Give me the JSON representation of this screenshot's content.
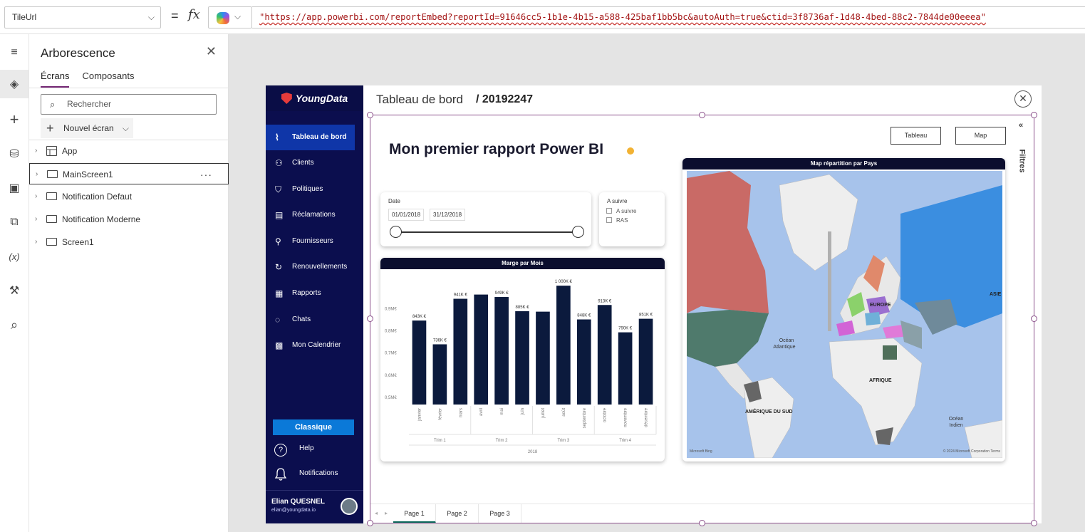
{
  "formula_bar": {
    "property": "TileUrl",
    "equals": "=",
    "fx": "fx",
    "chevron": "⌵",
    "expression": "\"https://app.powerbi.com/reportEmbed?reportId=91646cc5-1b1e-4b15-a588-425baf1bb5bc&autoAuth=true&ctid=3f8736af-1d48-4bed-88c2-7844de00eeea\""
  },
  "rail": {
    "icons": [
      "menu-icon",
      "layers-icon",
      "plus-icon",
      "database-icon",
      "media-icon",
      "power-automate-icon",
      "variables-icon",
      "tools-icon",
      "search-icon"
    ],
    "glyphs": [
      "≡",
      "◈",
      "+",
      "⛁",
      "▣",
      "⧉",
      "(x)",
      "⚒",
      "⌕"
    ]
  },
  "tree": {
    "title": "Arborescence",
    "close": "✕",
    "tabs": [
      "Écrans",
      "Composants"
    ],
    "search_placeholder": "Rechercher",
    "search_icon": "⌕",
    "new_screen": "Nouvel écran",
    "plus": "+",
    "chevron": "⌵",
    "arrow": "›",
    "more": "···",
    "items": [
      "App",
      "MainScreen1",
      "Notification Defaut",
      "Notification Moderne",
      "Screen1"
    ]
  },
  "app": {
    "brand": "YoungData",
    "header_title": "Tableau de bord",
    "header_id": "/ 20192247",
    "close": "✕",
    "nav": [
      {
        "label": "Tableau de bord",
        "icon": "chart-icon",
        "glyph": "⌇"
      },
      {
        "label": "Clients",
        "icon": "users-icon",
        "glyph": "⚇"
      },
      {
        "label": "Politiques",
        "icon": "shield-icon",
        "glyph": "⛉"
      },
      {
        "label": "Réclamations",
        "icon": "document-icon",
        "glyph": "▤"
      },
      {
        "label": "Fournisseurs",
        "icon": "supplier-icon",
        "glyph": "⚲"
      },
      {
        "label": "Renouvellements",
        "icon": "renew-icon",
        "glyph": "↻"
      },
      {
        "label": "Rapports",
        "icon": "report-icon",
        "glyph": "▦"
      },
      {
        "label": "Chats",
        "icon": "chat-icon",
        "glyph": "◌"
      },
      {
        "label": "Mon Calendrier",
        "icon": "calendar-icon",
        "glyph": "▩"
      }
    ],
    "classic_button": "Classique",
    "help": "Help",
    "help_glyph": "?",
    "notifications": "Notifications",
    "notif_glyph": "♫",
    "user_name": "Elian QUESNEL",
    "user_email": "elian@youngdata.io"
  },
  "report": {
    "title": "Mon premier rapport Power BI",
    "buttons": [
      "Tableau",
      "Map"
    ],
    "filters": "Filtres",
    "filters_chevron": "«",
    "date_filter": {
      "label": "Date",
      "start": "01/01/2018",
      "end": "31/12/2018"
    },
    "follow_filter": {
      "label": "A suivre",
      "options": [
        "A suivre",
        "RAS"
      ]
    },
    "map": {
      "title": "Map répartition par Pays",
      "labels": [
        "EUROPE",
        "ASIE",
        "Océan Atlantique",
        "AFRIQUE",
        "AMÉRIQUE DU SUD",
        "Océan Indien"
      ],
      "attribution_left": "Microsoft Bing",
      "attribution_right": "© 2024 Microsoft Corporation  Terms"
    },
    "pages": [
      "Page 1",
      "Page 2",
      "Page 3"
    ],
    "page_prev": "◂",
    "page_next": "▸"
  },
  "chart_data": {
    "type": "bar",
    "title": "Marge par Mois",
    "categories": [
      "janvier",
      "février",
      "mars",
      "avril",
      "mai",
      "juin",
      "juillet",
      "août",
      "septembre",
      "octobre",
      "novembre",
      "décembre"
    ],
    "values": [
      843,
      736,
      941,
      960,
      949,
      885,
      883,
      1000,
      848,
      913,
      790,
      851
    ],
    "data_labels": [
      "843K €",
      "736K €",
      "941K €",
      "",
      "949K €",
      "885K €",
      "",
      "1 000K €",
      "848K €",
      "913K €",
      "790K €",
      "851K €"
    ],
    "value_unit": "K €",
    "y_ticks": [
      "0,5M€",
      "0,6M€",
      "0,7M€",
      "0,8M€",
      "0,9M€"
    ],
    "y_tick_values": [
      500,
      600,
      700,
      800,
      900
    ],
    "ylim": [
      465,
      1010
    ],
    "quarters": [
      "Trim 1",
      "Trim 2",
      "Trim 3",
      "Trim 4"
    ],
    "year": "2018",
    "bar_color": "#0b1a3d"
  }
}
